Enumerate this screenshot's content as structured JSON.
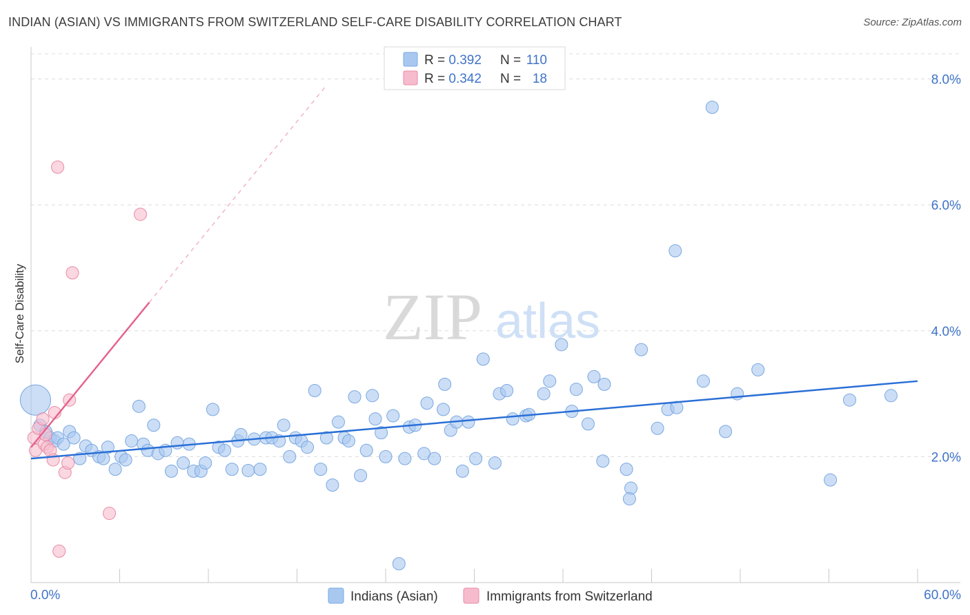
{
  "title": "INDIAN (ASIAN) VS IMMIGRANTS FROM SWITZERLAND SELF-CARE DISABILITY CORRELATION CHART",
  "source": "Source: ZipAtlas.com",
  "watermark": {
    "zip": "ZIP",
    "atlas": "atlas"
  },
  "colors": {
    "blue": "#a9c8f0",
    "blue_stroke": "#7aa7e0",
    "blue_line": "#2a6fd6",
    "pink": "#f6bccd",
    "pink_stroke": "#e98aa6",
    "pink_line": "#e5638e",
    "value_text": "#3f73c9",
    "grid": "#dcdcdc"
  },
  "legend_box": {
    "rows": [
      {
        "r_label": "R = ",
        "r_value": "0.392",
        "n_label": "N = ",
        "n_value": "110",
        "color": "blue"
      },
      {
        "r_label": "R = ",
        "r_value": "0.342",
        "n_label": "N = ",
        "n_value": "18",
        "color": "pink"
      }
    ]
  },
  "chart_data": {
    "type": "scatter",
    "title": "INDIAN (ASIAN) VS IMMIGRANTS FROM SWITZERLAND SELF-CARE DISABILITY CORRELATION CHART",
    "xlabel": "",
    "ylabel": "Self-Care Disability",
    "xlim": [
      0,
      60
    ],
    "ylim": [
      0,
      8.4
    ],
    "x_tick_labels": [
      "0.0%",
      "60.0%"
    ],
    "y_ticks": [
      2,
      4,
      6,
      8
    ],
    "y_tick_labels": [
      "2.0%",
      "4.0%",
      "6.0%",
      "8.0%"
    ],
    "grid": true,
    "legend_position": "bottom",
    "series": [
      {
        "name": "Indians (Asian)",
        "color": "blue",
        "trend": {
          "x0": 0,
          "y0": 1.97,
          "x1": 60,
          "y1": 3.2
        },
        "points": [
          {
            "x": 0.3,
            "y": 2.9,
            "big": true
          },
          {
            "x": 0.6,
            "y": 2.5
          },
          {
            "x": 1.0,
            "y": 2.4
          },
          {
            "x": 1.3,
            "y": 2.3
          },
          {
            "x": 1.6,
            "y": 2.25
          },
          {
            "x": 1.8,
            "y": 2.3
          },
          {
            "x": 2.2,
            "y": 2.2
          },
          {
            "x": 2.6,
            "y": 2.4
          },
          {
            "x": 2.9,
            "y": 2.3
          },
          {
            "x": 3.3,
            "y": 1.97
          },
          {
            "x": 3.7,
            "y": 2.17
          },
          {
            "x": 4.1,
            "y": 2.1
          },
          {
            "x": 4.6,
            "y": 2.0
          },
          {
            "x": 4.9,
            "y": 1.97
          },
          {
            "x": 5.2,
            "y": 2.15
          },
          {
            "x": 5.7,
            "y": 1.8
          },
          {
            "x": 6.1,
            "y": 2.0
          },
          {
            "x": 6.4,
            "y": 1.95
          },
          {
            "x": 6.8,
            "y": 2.25
          },
          {
            "x": 7.3,
            "y": 2.8
          },
          {
            "x": 7.6,
            "y": 2.2
          },
          {
            "x": 7.9,
            "y": 2.1
          },
          {
            "x": 8.3,
            "y": 2.5
          },
          {
            "x": 8.6,
            "y": 2.05
          },
          {
            "x": 9.1,
            "y": 2.1
          },
          {
            "x": 9.5,
            "y": 1.77
          },
          {
            "x": 9.9,
            "y": 2.22
          },
          {
            "x": 10.3,
            "y": 1.9
          },
          {
            "x": 10.7,
            "y": 2.2
          },
          {
            "x": 11.0,
            "y": 1.77
          },
          {
            "x": 11.5,
            "y": 1.77
          },
          {
            "x": 11.8,
            "y": 1.9
          },
          {
            "x": 12.3,
            "y": 2.75
          },
          {
            "x": 12.7,
            "y": 2.15
          },
          {
            "x": 13.1,
            "y": 2.1
          },
          {
            "x": 13.6,
            "y": 1.8
          },
          {
            "x": 14.0,
            "y": 2.25
          },
          {
            "x": 14.2,
            "y": 2.35
          },
          {
            "x": 14.7,
            "y": 1.78
          },
          {
            "x": 15.1,
            "y": 2.28
          },
          {
            "x": 15.5,
            "y": 1.8
          },
          {
            "x": 15.9,
            "y": 2.3
          },
          {
            "x": 16.3,
            "y": 2.3
          },
          {
            "x": 16.8,
            "y": 2.25
          },
          {
            "x": 17.1,
            "y": 2.5
          },
          {
            "x": 17.5,
            "y": 2.0
          },
          {
            "x": 17.9,
            "y": 2.3
          },
          {
            "x": 18.3,
            "y": 2.25
          },
          {
            "x": 18.7,
            "y": 2.15
          },
          {
            "x": 19.2,
            "y": 3.05
          },
          {
            "x": 19.6,
            "y": 1.8
          },
          {
            "x": 20.0,
            "y": 2.3
          },
          {
            "x": 20.4,
            "y": 1.55
          },
          {
            "x": 20.8,
            "y": 2.55
          },
          {
            "x": 21.2,
            "y": 2.3
          },
          {
            "x": 21.5,
            "y": 2.25
          },
          {
            "x": 21.9,
            "y": 2.95
          },
          {
            "x": 22.3,
            "y": 1.7
          },
          {
            "x": 22.7,
            "y": 2.1
          },
          {
            "x": 23.1,
            "y": 2.97
          },
          {
            "x": 23.3,
            "y": 2.6
          },
          {
            "x": 23.7,
            "y": 2.38
          },
          {
            "x": 24.0,
            "y": 2.0
          },
          {
            "x": 24.5,
            "y": 2.65
          },
          {
            "x": 24.9,
            "y": 0.3
          },
          {
            "x": 25.3,
            "y": 1.97
          },
          {
            "x": 25.6,
            "y": 2.47
          },
          {
            "x": 26.0,
            "y": 2.5
          },
          {
            "x": 26.6,
            "y": 2.05
          },
          {
            "x": 26.8,
            "y": 2.85
          },
          {
            "x": 27.3,
            "y": 1.97
          },
          {
            "x": 27.9,
            "y": 2.75
          },
          {
            "x": 28.0,
            "y": 3.15
          },
          {
            "x": 28.4,
            "y": 2.42
          },
          {
            "x": 28.8,
            "y": 2.55
          },
          {
            "x": 29.2,
            "y": 1.77
          },
          {
            "x": 29.6,
            "y": 2.55
          },
          {
            "x": 30.1,
            "y": 1.97
          },
          {
            "x": 30.6,
            "y": 3.55
          },
          {
            "x": 31.4,
            "y": 1.9
          },
          {
            "x": 31.7,
            "y": 3.0
          },
          {
            "x": 32.2,
            "y": 3.05
          },
          {
            "x": 32.6,
            "y": 2.6
          },
          {
            "x": 33.5,
            "y": 2.65
          },
          {
            "x": 33.7,
            "y": 2.67
          },
          {
            "x": 34.7,
            "y": 3.0
          },
          {
            "x": 35.1,
            "y": 3.2
          },
          {
            "x": 35.9,
            "y": 3.78
          },
          {
            "x": 36.6,
            "y": 2.72
          },
          {
            "x": 36.9,
            "y": 3.07
          },
          {
            "x": 37.7,
            "y": 2.52
          },
          {
            "x": 38.1,
            "y": 3.27
          },
          {
            "x": 38.7,
            "y": 1.93
          },
          {
            "x": 38.8,
            "y": 3.15
          },
          {
            "x": 40.3,
            "y": 1.8
          },
          {
            "x": 40.6,
            "y": 1.5
          },
          {
            "x": 40.5,
            "y": 1.33
          },
          {
            "x": 41.3,
            "y": 3.7
          },
          {
            "x": 42.4,
            "y": 2.45
          },
          {
            "x": 43.1,
            "y": 2.75
          },
          {
            "x": 43.6,
            "y": 5.27
          },
          {
            "x": 43.7,
            "y": 2.78
          },
          {
            "x": 45.5,
            "y": 3.2
          },
          {
            "x": 46.1,
            "y": 7.55
          },
          {
            "x": 47.0,
            "y": 2.4
          },
          {
            "x": 47.8,
            "y": 3.0
          },
          {
            "x": 49.2,
            "y": 3.38
          },
          {
            "x": 54.1,
            "y": 1.63
          },
          {
            "x": 55.4,
            "y": 2.9
          },
          {
            "x": 58.2,
            "y": 2.97
          }
        ]
      },
      {
        "name": "Immigrants from Switzerland",
        "color": "pink",
        "trend": {
          "x0": 0,
          "y0": 2.15,
          "x1": 8,
          "y1": 4.45,
          "dash_x1": 20,
          "dash_y1": 7.9
        },
        "points": [
          {
            "x": 0.2,
            "y": 2.3
          },
          {
            "x": 0.3,
            "y": 2.1
          },
          {
            "x": 0.5,
            "y": 2.45
          },
          {
            "x": 0.8,
            "y": 2.6
          },
          {
            "x": 0.9,
            "y": 2.2
          },
          {
            "x": 1.0,
            "y": 2.35
          },
          {
            "x": 1.1,
            "y": 2.15
          },
          {
            "x": 1.3,
            "y": 2.1
          },
          {
            "x": 1.5,
            "y": 1.95
          },
          {
            "x": 1.6,
            "y": 2.7
          },
          {
            "x": 1.8,
            "y": 6.6
          },
          {
            "x": 2.3,
            "y": 1.75
          },
          {
            "x": 2.5,
            "y": 1.9
          },
          {
            "x": 2.6,
            "y": 2.9
          },
          {
            "x": 2.8,
            "y": 4.92
          },
          {
            "x": 1.9,
            "y": 0.5
          },
          {
            "x": 5.3,
            "y": 1.1
          },
          {
            "x": 7.4,
            "y": 5.85
          }
        ]
      }
    ]
  }
}
